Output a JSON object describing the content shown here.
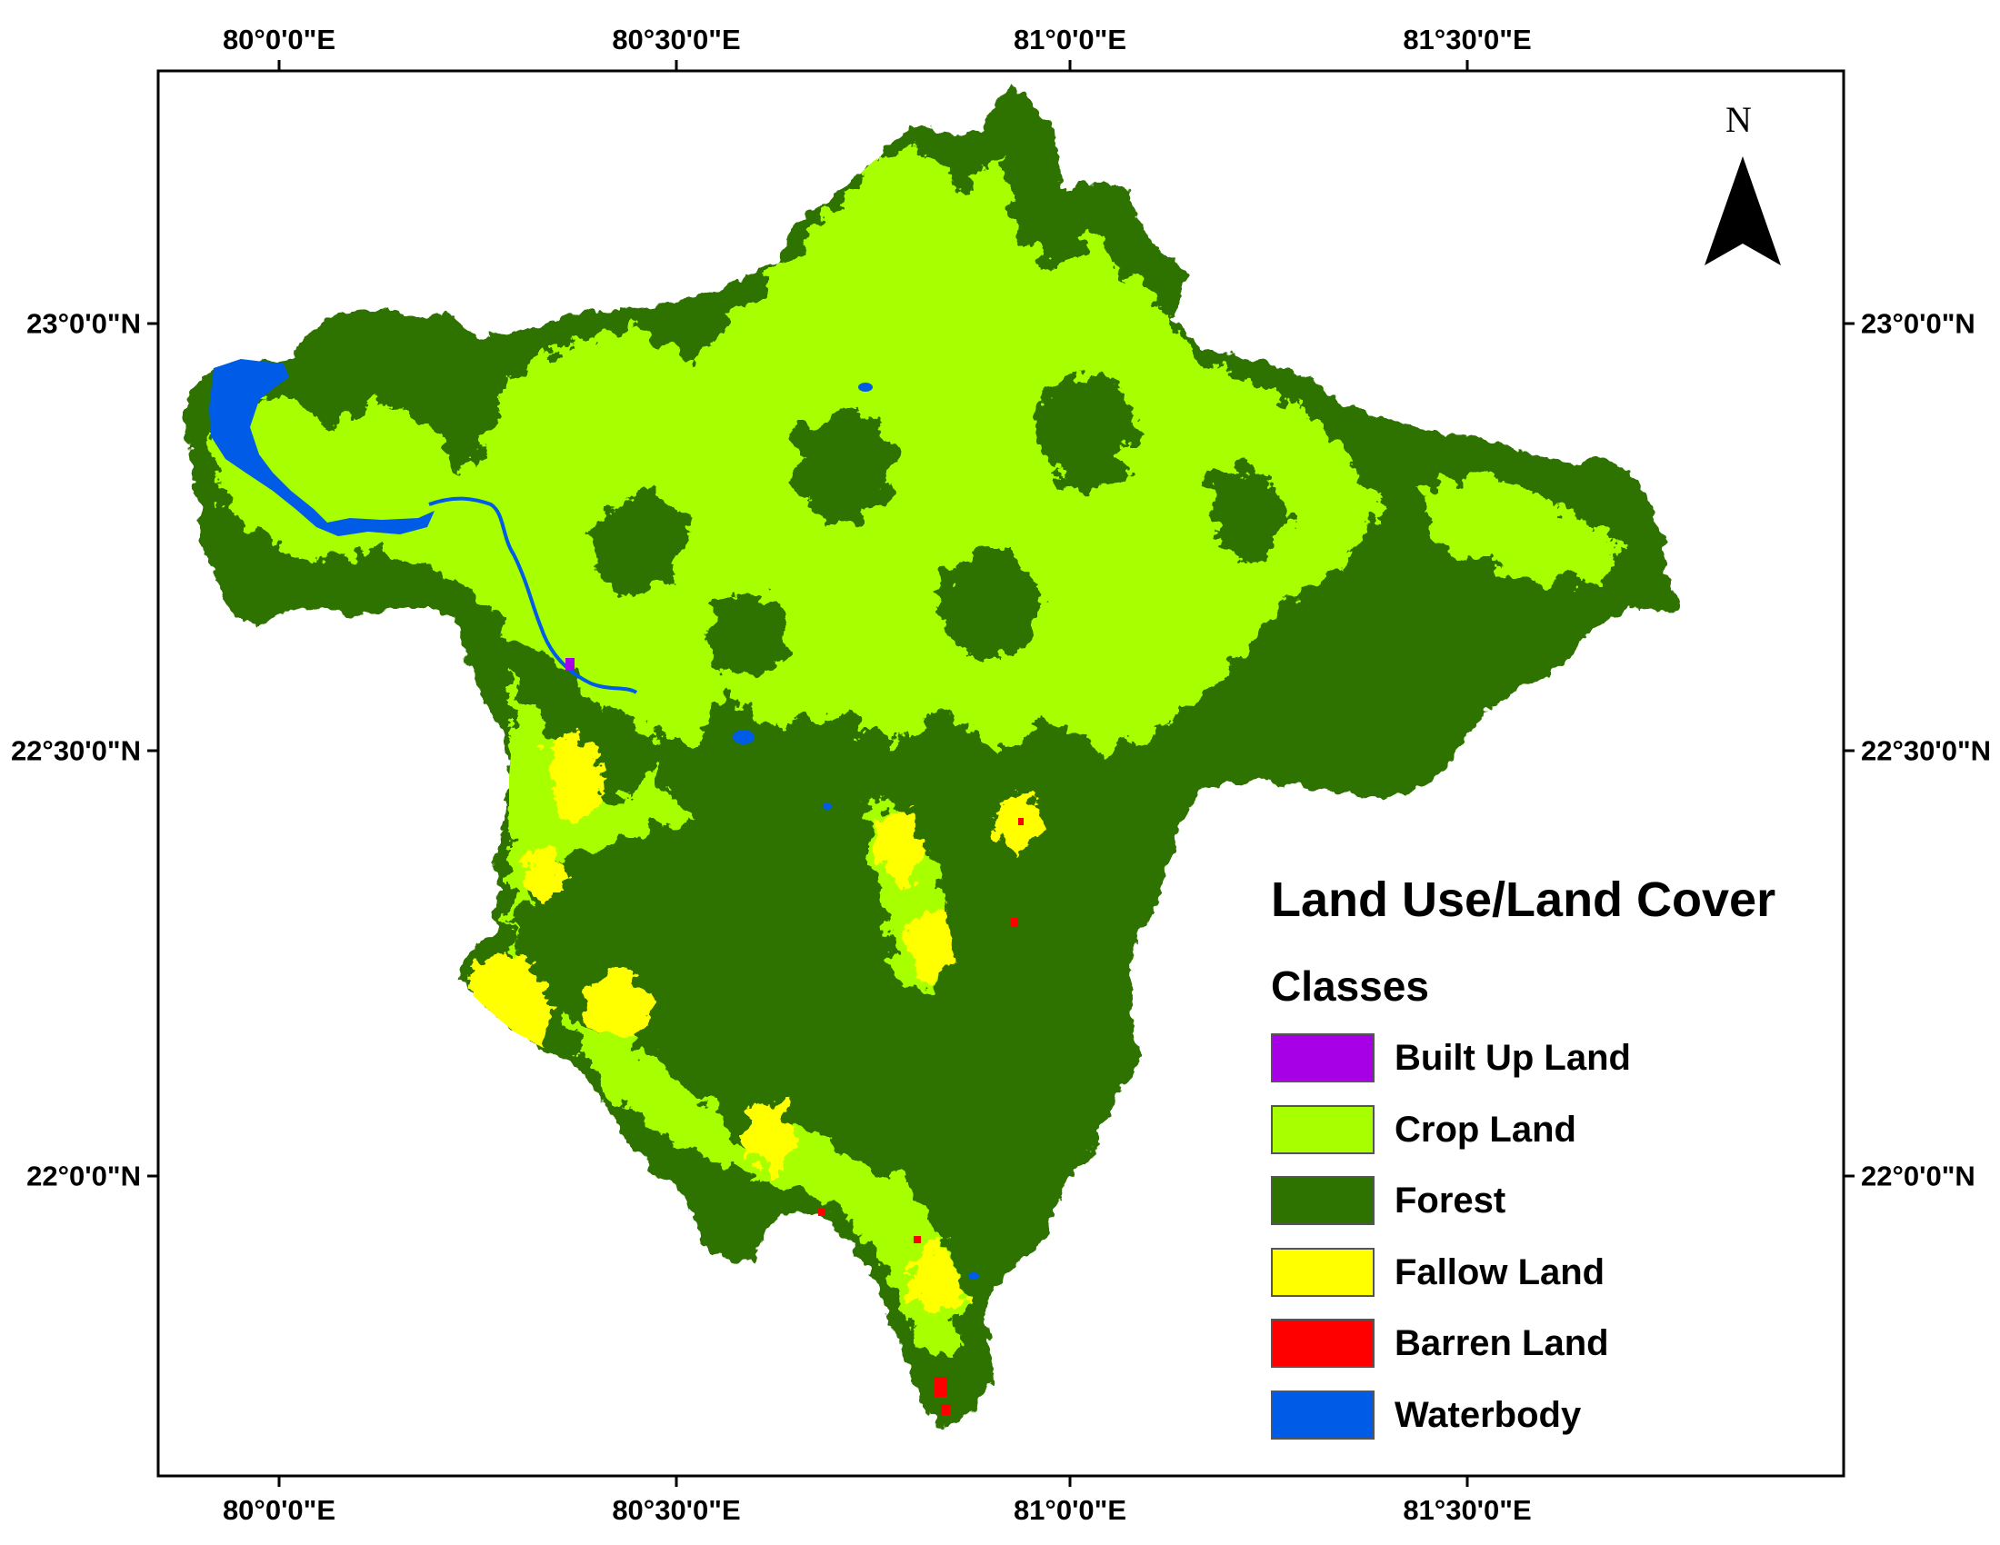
{
  "map": {
    "top_ticks": [
      "80°0'0\"E",
      "80°30'0\"E",
      "81°0'0\"E",
      "81°30'0\"E"
    ],
    "bottom_ticks": [
      "80°0'0\"E",
      "80°30'0\"E",
      "81°0'0\"E",
      "81°30'0\"E"
    ],
    "left_ticks": [
      "23°0'0\"N",
      "22°30'0\"N",
      "22°0'0\"N"
    ],
    "right_ticks": [
      "23°0'0\"N",
      "22°30'0\"N",
      "22°0'0\"N"
    ],
    "north_arrow_label": "N"
  },
  "legend": {
    "title": "Land Use/Land Cover",
    "subtitle": "Classes",
    "classes": [
      {
        "label": "Built Up Land",
        "color": "#a800e6"
      },
      {
        "label": "Crop Land",
        "color": "#a8ff00"
      },
      {
        "label": "Forest",
        "color": "#2e7300"
      },
      {
        "label": "Fallow Land",
        "color": "#ffff00"
      },
      {
        "label": "Barren Land",
        "color": "#ff0000"
      },
      {
        "label": "Waterbody",
        "color": "#005ce6"
      }
    ]
  },
  "colors": {
    "frame": "#000000",
    "forest": "#2e7300",
    "crop": "#a8ff00",
    "fallow": "#ffff00",
    "barren": "#ff0000",
    "water": "#005ce6",
    "built": "#a800e6"
  }
}
